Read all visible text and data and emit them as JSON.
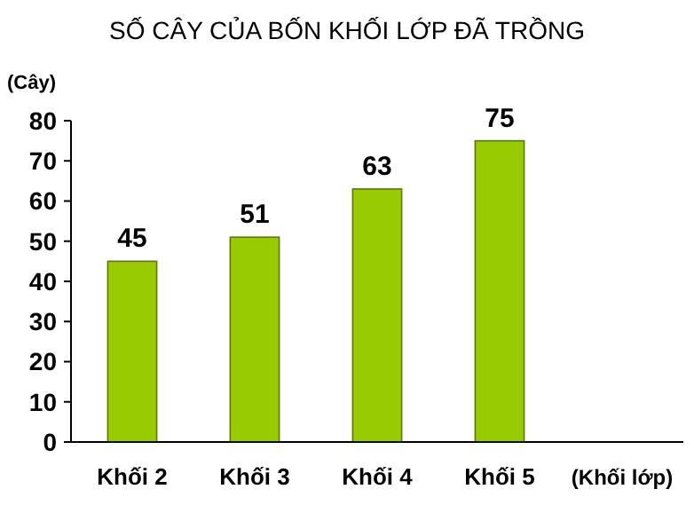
{
  "chart_data": {
    "type": "bar",
    "title": "SỐ CÂY CỦA BỐN KHỐI LỚP ĐÃ TRỒNG",
    "ylabel": "(Cây)",
    "xlabel": "(Khối lớp)",
    "categories": [
      "Khối 2",
      "Khối 3",
      "Khối 4",
      "Khối 5"
    ],
    "values": [
      45,
      51,
      63,
      75
    ],
    "color": "#99cc00",
    "ylim": [
      0,
      80
    ],
    "yticks": [
      0,
      10,
      20,
      30,
      40,
      50,
      60,
      70,
      80
    ],
    "data_labels": true
  }
}
